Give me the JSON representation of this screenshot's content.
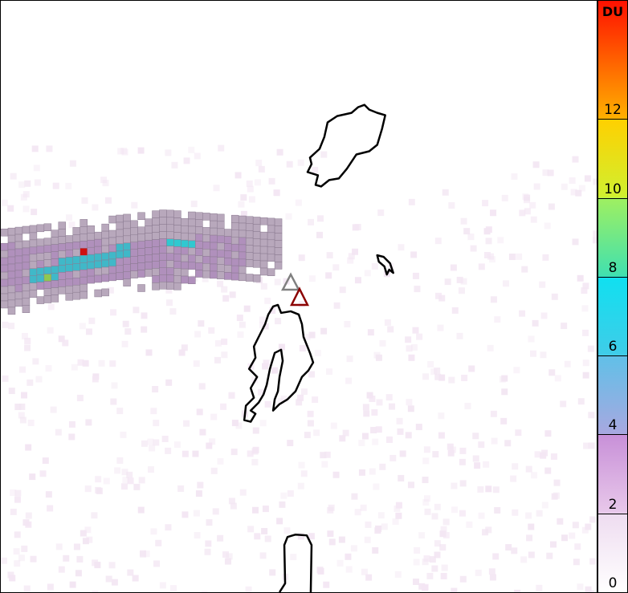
{
  "colorbar": {
    "unit": "DU",
    "min": 0,
    "max": 15,
    "ticks": [
      "0",
      "2",
      "4",
      "6",
      "8",
      "10",
      "12"
    ],
    "stops": [
      {
        "value": 0,
        "color": "#ffffff"
      },
      {
        "value": 2,
        "color": "#eedcf0"
      },
      {
        "value": 2.01,
        "color": "#e8c8ea"
      },
      {
        "value": 4,
        "color": "#c890d8"
      },
      {
        "value": 4.01,
        "color": "#a8a8e0"
      },
      {
        "value": 6,
        "color": "#60c0e8"
      },
      {
        "value": 6.01,
        "color": "#40cce8"
      },
      {
        "value": 8,
        "color": "#10e0f0"
      },
      {
        "value": 8.01,
        "color": "#40e0b0"
      },
      {
        "value": 10,
        "color": "#a0f060"
      },
      {
        "value": 10.01,
        "color": "#d0f030"
      },
      {
        "value": 12,
        "color": "#ffd000"
      },
      {
        "value": 12.01,
        "color": "#ffb000"
      },
      {
        "value": 15,
        "color": "#ff1000"
      }
    ]
  },
  "markers": [
    {
      "name": "volcano-previous",
      "color": "#808080"
    },
    {
      "name": "volcano-current",
      "color": "#8b0000"
    }
  ]
}
